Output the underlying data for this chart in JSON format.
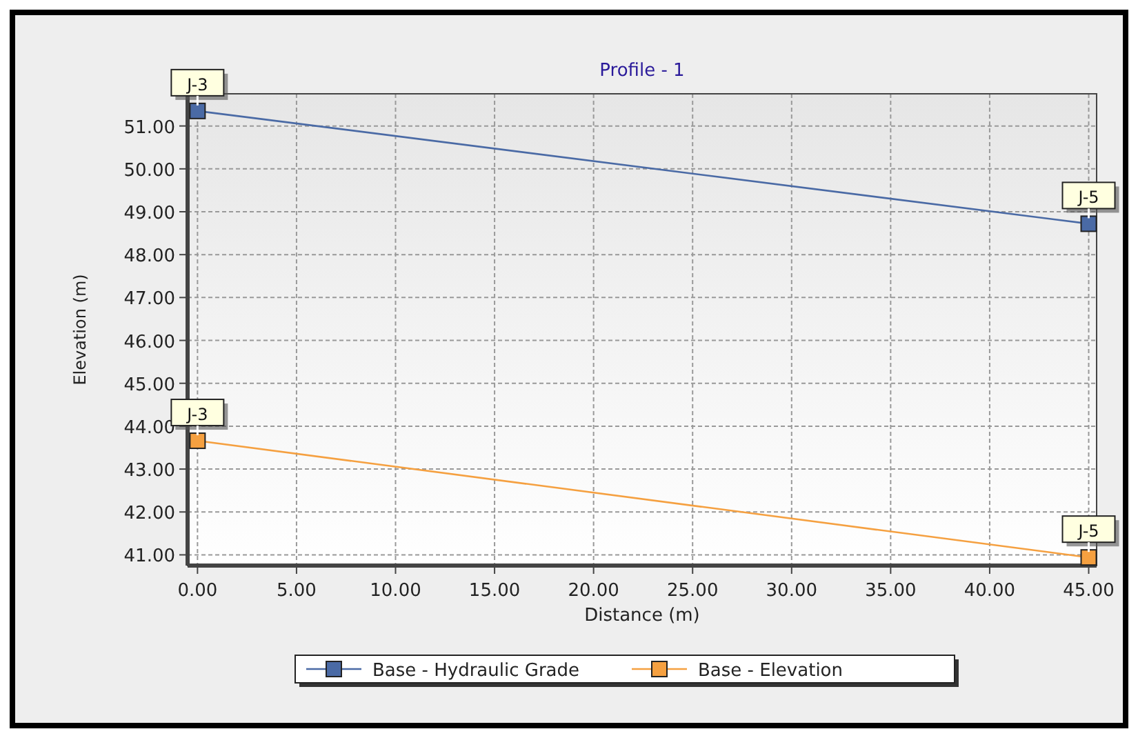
{
  "chart_data": {
    "type": "line",
    "title": "Profile - 1",
    "xlabel": "Distance (m)",
    "ylabel": "Elevation (m)",
    "x": [
      0,
      45
    ],
    "series": [
      {
        "name": "Base - Hydraulic Grade",
        "color": "#4a6aa5",
        "values": [
          51.35,
          48.72
        ],
        "value_labels": [
          "J-3",
          "J-5"
        ]
      },
      {
        "name": "Base - Elevation",
        "color": "#f5a040",
        "values": [
          43.66,
          40.94
        ],
        "value_labels": [
          "J-3",
          "J-5"
        ]
      }
    ],
    "xlim": [
      -0.5,
      45.4
    ],
    "xticks": [
      {
        "value": 0,
        "label": "0.00"
      },
      {
        "value": 5,
        "label": "5.00"
      },
      {
        "value": 10,
        "label": "10.00"
      },
      {
        "value": 15,
        "label": "15.00"
      },
      {
        "value": 20,
        "label": "20.00"
      },
      {
        "value": 25,
        "label": "25.00"
      },
      {
        "value": 30,
        "label": "30.00"
      },
      {
        "value": 35,
        "label": "35.00"
      },
      {
        "value": 40,
        "label": "40.00"
      },
      {
        "value": 45,
        "label": "45.00"
      }
    ],
    "ylim": [
      40.75,
      51.75
    ],
    "yticks": [
      {
        "value": 41,
        "label": "41.00"
      },
      {
        "value": 42,
        "label": "42.00"
      },
      {
        "value": 43,
        "label": "43.00"
      },
      {
        "value": 44,
        "label": "44.00"
      },
      {
        "value": 45,
        "label": "45.00"
      },
      {
        "value": 46,
        "label": "46.00"
      },
      {
        "value": 47,
        "label": "47.00"
      },
      {
        "value": 48,
        "label": "48.00"
      },
      {
        "value": 49,
        "label": "49.00"
      },
      {
        "value": 50,
        "label": "50.00"
      },
      {
        "value": 51,
        "label": "51.00"
      }
    ],
    "grid": true,
    "legend": "bottom",
    "marker": "square",
    "line_style": "solid"
  }
}
